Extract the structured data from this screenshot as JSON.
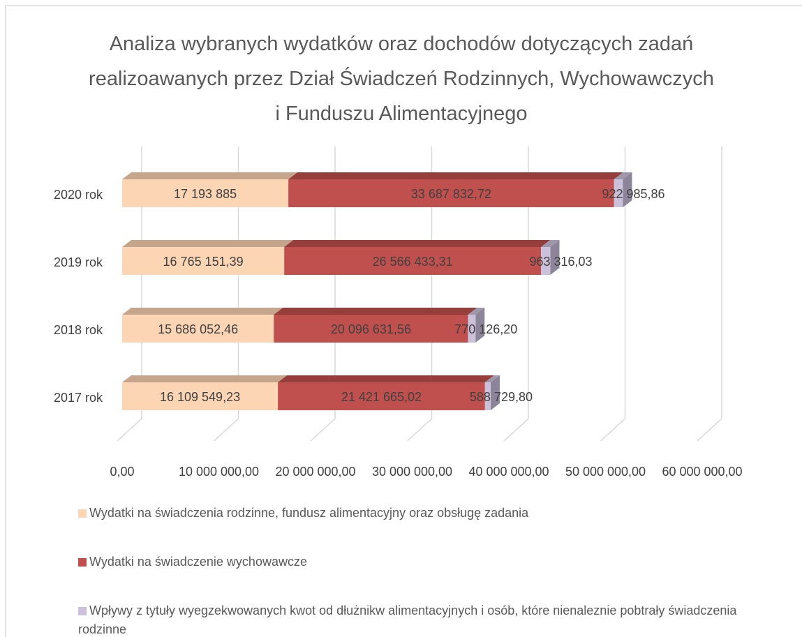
{
  "chart_data": {
    "type": "bar3d_stacked_horizontal",
    "title": "Analiza wybranych wydatków oraz dochodów dotyczących zadań realizoawanych przez Dział Świadczeń Rodzinnych, Wychowawczych i Funduszu Alimentacyjnego",
    "categories": [
      "2017 rok",
      "2018 rok",
      "2019 rok",
      "2020 rok"
    ],
    "series": [
      {
        "name": "Wydatki na świadczenia rodzinne, fundusz alimentacyjny oraz obsługę zadania",
        "color": "#fcd5b5",
        "values": [
          16109549.23,
          15686052.46,
          16765151.39,
          17193885
        ],
        "value_labels": [
          "16 109 549,23",
          "15 686 052,46",
          "16 765 151,39",
          "17 193 885"
        ]
      },
      {
        "name": "Wydatki na świadczenie wychowawcze",
        "color": "#c0504d",
        "values": [
          21421665.02,
          20096631.56,
          26566433.31,
          33687832.72
        ],
        "value_labels": [
          "21 421 665,02",
          "20 096 631,56",
          "26 566 433,31",
          "33 687 832,72"
        ]
      },
      {
        "name": "Wpływy z tytuły wyegzekwowanych kwot od dłużnikw alimentacyjnych i osób, które nienaleznie pobtrały świadczenia rodzinne",
        "color": "#ccc1da",
        "values": [
          588729.8,
          770126.2,
          963316.03,
          922985.86
        ],
        "value_labels": [
          "588 729,80",
          "770 126,20",
          "963 316,03",
          "922 985,86"
        ]
      }
    ],
    "xlim": [
      0,
      60000000
    ],
    "xticks": [
      {
        "value": 0,
        "label": "0,00"
      },
      {
        "value": 10000000,
        "label": "10 000 000,00"
      },
      {
        "value": 20000000,
        "label": "20 000 000,00"
      },
      {
        "value": 30000000,
        "label": "30 000 000,00"
      },
      {
        "value": 40000000,
        "label": "40 000 000,00"
      },
      {
        "value": 50000000,
        "label": "50 000 000,00"
      },
      {
        "value": 60000000,
        "label": "60 000 000,00"
      }
    ],
    "grid": true,
    "legend": "bottom"
  }
}
